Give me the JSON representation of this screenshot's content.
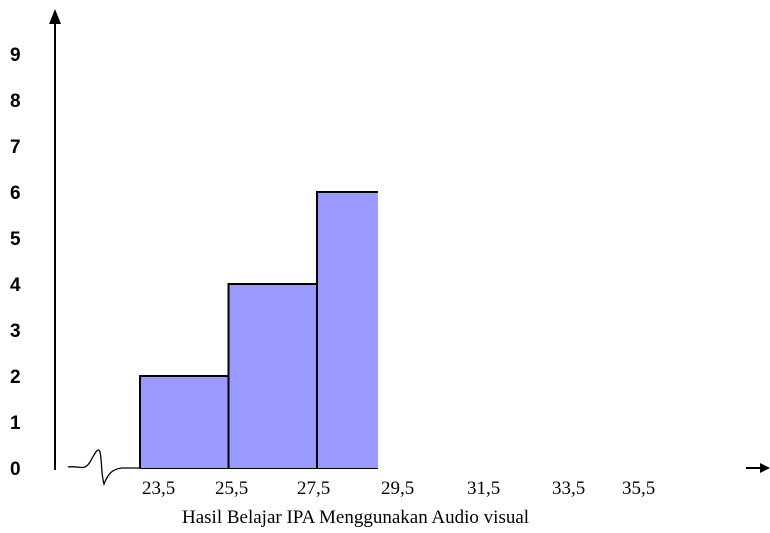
{
  "chart_data": {
    "type": "bar",
    "title": "",
    "xlabel": "Hasil Belajar IPA Menggunakan Audio visual",
    "ylabel": "",
    "x_ticks": [
      "23,5",
      "25,5",
      "27,5",
      "29,5",
      "31,5",
      "33,5",
      "35,5"
    ],
    "y_ticks": [
      "0",
      "1",
      "2",
      "3",
      "4",
      "5",
      "6",
      "7",
      "8",
      "9"
    ],
    "bins": [
      {
        "from": 23.5,
        "to": 25.5,
        "value": 2
      },
      {
        "from": 25.5,
        "to": 27.5,
        "value": 4
      },
      {
        "from": 27.5,
        "to": 29.5,
        "value": 6
      }
    ],
    "ylim": [
      0,
      9
    ],
    "grid": false,
    "bar_color": "#9999ff"
  }
}
